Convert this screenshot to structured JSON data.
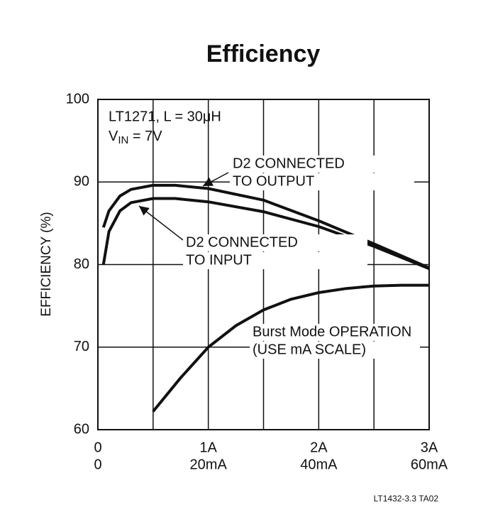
{
  "chart_data": {
    "type": "line",
    "title": "Efficiency",
    "ylabel": "EFFICIENCY (%)",
    "footnote": "LT1432-3.3 TA02",
    "annotations": [
      "LT1271, L = 30μH",
      {
        "text": "V",
        "sub": "IN",
        "rest": " = 7V"
      }
    ],
    "xlim": [
      0,
      3
    ],
    "xticks": [
      0,
      {
        "value": 1,
        "label": "1A"
      },
      {
        "value": 2,
        "label": "2A"
      },
      {
        "value": 3,
        "label": "3A"
      }
    ],
    "x2lim": [
      0,
      60
    ],
    "x2ticks": [
      0,
      {
        "value": 20,
        "label": "20mA"
      },
      {
        "value": 40,
        "label": "40mA"
      },
      {
        "value": 60,
        "label": "60mA"
      }
    ],
    "xgrid": [
      0.5,
      1,
      1.5,
      2,
      2.5
    ],
    "ylim": [
      60,
      100
    ],
    "yticks": [
      60,
      70,
      80,
      90,
      100
    ],
    "grid": true,
    "series": [
      {
        "label": [
          "D2 CONNECTED",
          "TO OUTPUT"
        ],
        "color": "#111111",
        "x": [
          0.05,
          0.1,
          0.2,
          0.3,
          0.5,
          0.7,
          1.0,
          1.5,
          2.0,
          2.5,
          3.0
        ],
        "values": [
          84.5,
          86.5,
          88.3,
          89.1,
          89.6,
          89.6,
          89.2,
          87.8,
          85.3,
          82.5,
          79.6
        ]
      },
      {
        "label": [
          "D2 CONNECTED",
          "TO INPUT"
        ],
        "color": "#111111",
        "x": [
          0.05,
          0.1,
          0.2,
          0.3,
          0.5,
          0.7,
          1.0,
          1.5,
          2.0,
          2.5,
          3.0
        ],
        "values": [
          80.0,
          84.0,
          86.5,
          87.5,
          88.0,
          88.0,
          87.6,
          86.4,
          84.6,
          82.2,
          79.5
        ]
      },
      {
        "label": [
          "Burst Mode OPERATION",
          "(USE mA SCALE)"
        ],
        "color": "#111111",
        "xaxis": "x2",
        "x": [
          10,
          15,
          20,
          25,
          30,
          35,
          40,
          45,
          50,
          55,
          60
        ],
        "values": [
          62.2,
          66.3,
          70.0,
          72.6,
          74.5,
          75.8,
          76.6,
          77.1,
          77.4,
          77.5,
          77.5
        ]
      }
    ]
  }
}
